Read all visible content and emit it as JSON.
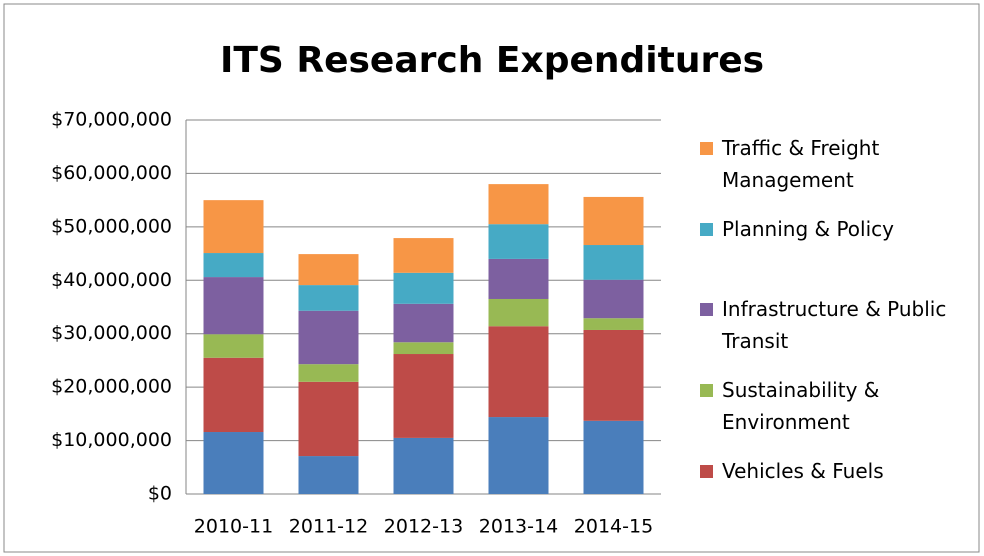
{
  "chart_data": {
    "type": "stacked_bar",
    "title": "ITS Research Expenditures",
    "categories": [
      "2010-11",
      "2011-12",
      "2012-13",
      "2013-14",
      "2014-15"
    ],
    "series": [
      {
        "name": null,
        "color": "#4a7ebb",
        "values": [
          11600000,
          7100000,
          10500000,
          14400000,
          13700000
        ]
      },
      {
        "name": "Vehicles & Fuels",
        "color": "#be4b48",
        "values": [
          13900000,
          13900000,
          15700000,
          17000000,
          17000000
        ]
      },
      {
        "name": "Sustainability & Environment",
        "color": "#98b954",
        "values": [
          4400000,
          3300000,
          2200000,
          5100000,
          2200000
        ]
      },
      {
        "name": "Infrastructure & Public Transit",
        "color": "#7d60a0",
        "values": [
          10700000,
          10000000,
          7200000,
          7500000,
          7200000
        ]
      },
      {
        "name": "Planning & Policy",
        "color": "#46aac5",
        "values": [
          4500000,
          4800000,
          5800000,
          6500000,
          6500000
        ]
      },
      {
        "name": "Traffic & Freight Management",
        "color": "#f79646",
        "values": [
          9900000,
          5800000,
          6500000,
          7500000,
          9000000
        ]
      }
    ],
    "ylim": [
      0,
      70000000
    ],
    "yticks": [
      {
        "value": 0,
        "label": "$0"
      },
      {
        "value": 10000000,
        "label": "$10,000,000"
      },
      {
        "value": 20000000,
        "label": "$20,000,000"
      },
      {
        "value": 30000000,
        "label": "$30,000,000"
      },
      {
        "value": 40000000,
        "label": "$40,000,000"
      },
      {
        "value": 50000000,
        "label": "$50,000,000"
      },
      {
        "value": 60000000,
        "label": "$60,000,000"
      },
      {
        "value": 70000000,
        "label": "$70,000,000"
      }
    ],
    "grid": true,
    "legend": "right"
  }
}
